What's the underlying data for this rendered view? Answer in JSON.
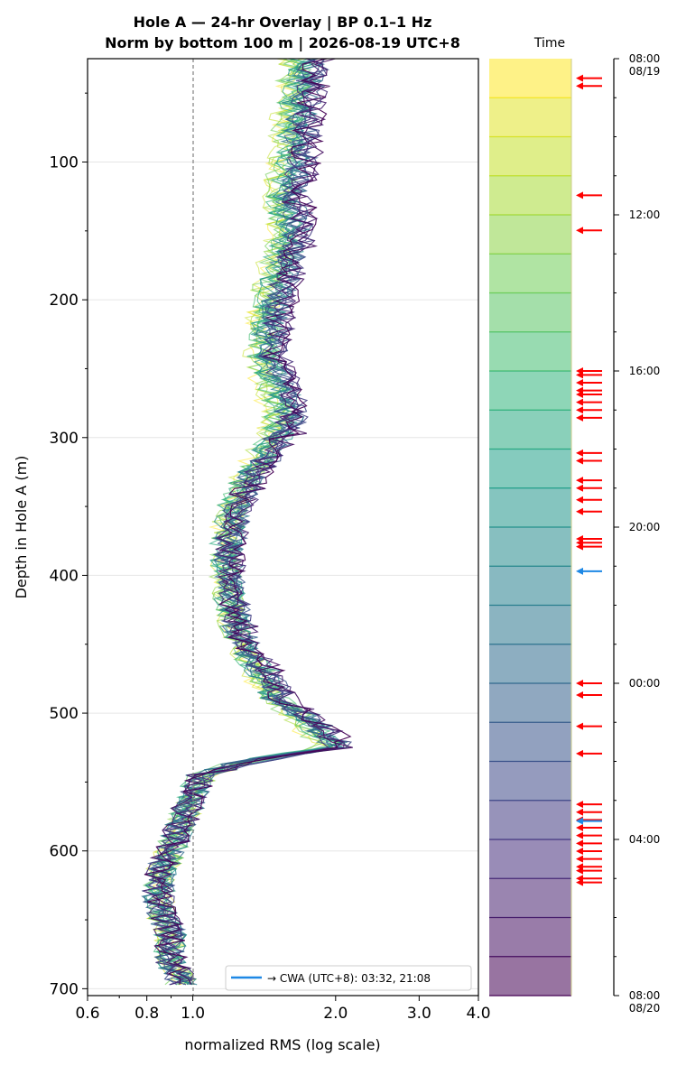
{
  "chart_data": [
    {
      "type": "line",
      "title": "Hole A — 24-hr Overlay  |  BP 0.1–1 Hz",
      "subtitle": "Norm by bottom 100 m  |  2026-08-19 UTC+8",
      "xlabel": "normalized RMS  (log scale)",
      "ylabel": "Depth in Hole A (m)",
      "x_scale": "log",
      "xlim": [
        0.6,
        4.0
      ],
      "ylim": [
        705,
        25
      ],
      "y_inverted": true,
      "x_ticks": [
        0.6,
        0.8,
        1.0,
        2.0,
        3.0,
        4.0
      ],
      "x_tick_labels": [
        "0.6",
        "0.8",
        "1.0",
        "2.0",
        "3.0",
        "4.0"
      ],
      "y_ticks": [
        100,
        200,
        300,
        400,
        500,
        600,
        700
      ],
      "y_tick_labels": [
        "100",
        "200",
        "300",
        "400",
        "500",
        "600",
        "700"
      ],
      "reference_line_x": 1.0,
      "grid": "horizontal",
      "legend": {
        "placement": "lower right",
        "entries": [
          "→ CWA (UTC+8): 03:32, 21:08"
        ],
        "color": "#1e88e5"
      },
      "colormap": "viridis (yellow = 08:00 08/19 → dark purple = 08:00 08/20)",
      "series_count": 24,
      "representative_profile": {
        "depth": [
          30,
          60,
          100,
          130,
          150,
          180,
          200,
          240,
          280,
          300,
          330,
          350,
          380,
          400,
          430,
          450,
          470,
          490,
          500,
          510,
          525,
          535,
          545,
          560,
          580,
          600,
          620,
          640,
          660,
          680,
          695
        ],
        "rms": [
          1.75,
          1.7,
          1.65,
          1.6,
          1.65,
          1.55,
          1.5,
          1.45,
          1.6,
          1.55,
          1.35,
          1.25,
          1.2,
          1.2,
          1.25,
          1.3,
          1.45,
          1.55,
          1.75,
          1.9,
          2.1,
          1.3,
          1.05,
          1.0,
          0.95,
          0.9,
          0.85,
          0.85,
          0.9,
          0.9,
          0.95
        ]
      }
    },
    {
      "type": "heatmap",
      "title": "Time",
      "orientation": "vertical",
      "bands": 24,
      "time_ticks": [
        "08:00\n08/19",
        "12:00",
        "16:00",
        "20:00",
        "00:00",
        "04:00",
        "08:00\n08/20"
      ],
      "tick_labels": [
        {
          "time": "08:00",
          "date": "08/19"
        },
        {
          "time": "12:00"
        },
        {
          "time": "16:00"
        },
        {
          "time": "20:00"
        },
        {
          "time": "00:00"
        },
        {
          "time": "04:00"
        },
        {
          "time": "08:00",
          "date": "08/20"
        }
      ],
      "event_markers_hours": [
        0.5,
        0.7,
        3.5,
        4.4,
        8.0,
        8.1,
        8.3,
        8.5,
        8.6,
        8.8,
        9.0,
        9.2,
        10.1,
        10.3,
        10.8,
        11.0,
        11.3,
        11.6,
        12.3,
        12.4,
        12.5,
        16.0,
        16.3,
        17.1,
        17.8,
        19.1,
        19.3,
        19.5,
        19.7,
        19.9,
        20.1,
        20.3,
        20.5,
        20.7,
        20.8,
        21.0,
        21.1
      ],
      "cwa_markers_hours": [
        13.13,
        19.53
      ],
      "event_color": "#ff0000",
      "cwa_color": "#1e88e5"
    }
  ]
}
